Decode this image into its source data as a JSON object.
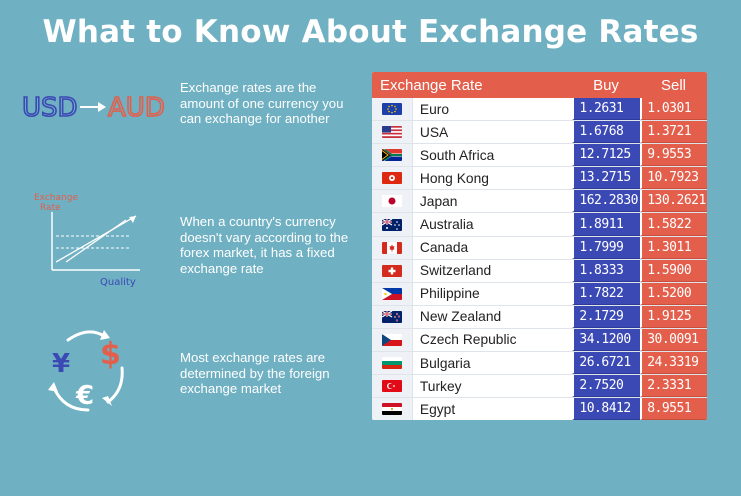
{
  "title": "What to Know About Exchange Rates",
  "facts": [
    "Exchange rates are the amount of one currency you can exchange for another",
    "When a country's currency doesn't vary according to the forex market, it has a fixed exchange rate",
    "Most exchange rates are determined by the foreign exchange market"
  ],
  "illustrations": {
    "from_currency": "USD",
    "to_currency": "AUD",
    "graph_ylabel_line1": "Exchange",
    "graph_ylabel_line2": "Rate",
    "graph_xlabel": "Quality",
    "symbol_yen": "¥",
    "symbol_dollar": "$",
    "symbol_euro": "€"
  },
  "table": {
    "headers": {
      "name": "Exchange Rate",
      "buy": "Buy",
      "sell": "Sell"
    },
    "rows": [
      {
        "flag": "euro-flag-icon",
        "country": "Euro",
        "buy": "1.2631",
        "sell": "1.0301"
      },
      {
        "flag": "usa-flag-icon",
        "country": "USA",
        "buy": "1.6768",
        "sell": "1.3721"
      },
      {
        "flag": "south-africa-flag-icon",
        "country": "South Africa",
        "buy": "12.7125",
        "sell": "9.9553"
      },
      {
        "flag": "hong-kong-flag-icon",
        "country": "Hong Kong",
        "buy": "13.2715",
        "sell": "10.7923"
      },
      {
        "flag": "japan-flag-icon",
        "country": "Japan",
        "buy": "162.2830",
        "sell": "130.2621"
      },
      {
        "flag": "australia-flag-icon",
        "country": "Australia",
        "buy": "1.8911",
        "sell": "1.5822"
      },
      {
        "flag": "canada-flag-icon",
        "country": "Canada",
        "buy": "1.7999",
        "sell": "1.3011"
      },
      {
        "flag": "switzerland-flag-icon",
        "country": "Switzerland",
        "buy": "1.8333",
        "sell": "1.5900"
      },
      {
        "flag": "philippines-flag-icon",
        "country": "Philippine",
        "buy": "1.7822",
        "sell": "1.5200"
      },
      {
        "flag": "new-zealand-flag-icon",
        "country": "New Zealand",
        "buy": "2.1729",
        "sell": "1.9125"
      },
      {
        "flag": "czech-flag-icon",
        "country": "Czech Republic",
        "buy": "34.1200",
        "sell": "30.0091"
      },
      {
        "flag": "bulgaria-flag-icon",
        "country": "Bulgaria",
        "buy": "26.6721",
        "sell": "24.3319"
      },
      {
        "flag": "turkey-flag-icon",
        "country": "Turkey",
        "buy": "2.7520",
        "sell": "2.3331"
      },
      {
        "flag": "egypt-flag-icon",
        "country": "Egypt",
        "buy": "10.8412",
        "sell": "8.9551"
      }
    ]
  },
  "colors": {
    "background": "#6fb0c2",
    "header_red": "#e35f4c",
    "buy_blue": "#3b49b5",
    "usd_blue": "#3b49b5",
    "aud_red": "#e35f4c"
  }
}
